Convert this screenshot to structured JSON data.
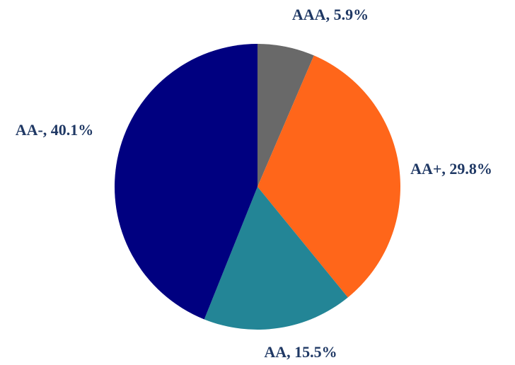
{
  "chart_data": {
    "type": "pie",
    "title": "",
    "start_angle_deg": 0,
    "direction": "clockwise",
    "label_color": "#1F3864",
    "slices": [
      {
        "name": "AAA",
        "value": 5.9,
        "label": "AAA, 5.9%",
        "color": "#696969"
      },
      {
        "name": "AA+",
        "value": 29.8,
        "label": "AA+, 29.8%",
        "color": "#FF661A"
      },
      {
        "name": "AA",
        "value": 15.5,
        "label": "AA, 15.5%",
        "color": "#238596"
      },
      {
        "name": "AA-",
        "value": 40.1,
        "label": "AA-, 40.1%",
        "color": "#000080"
      }
    ],
    "legend": "none"
  }
}
